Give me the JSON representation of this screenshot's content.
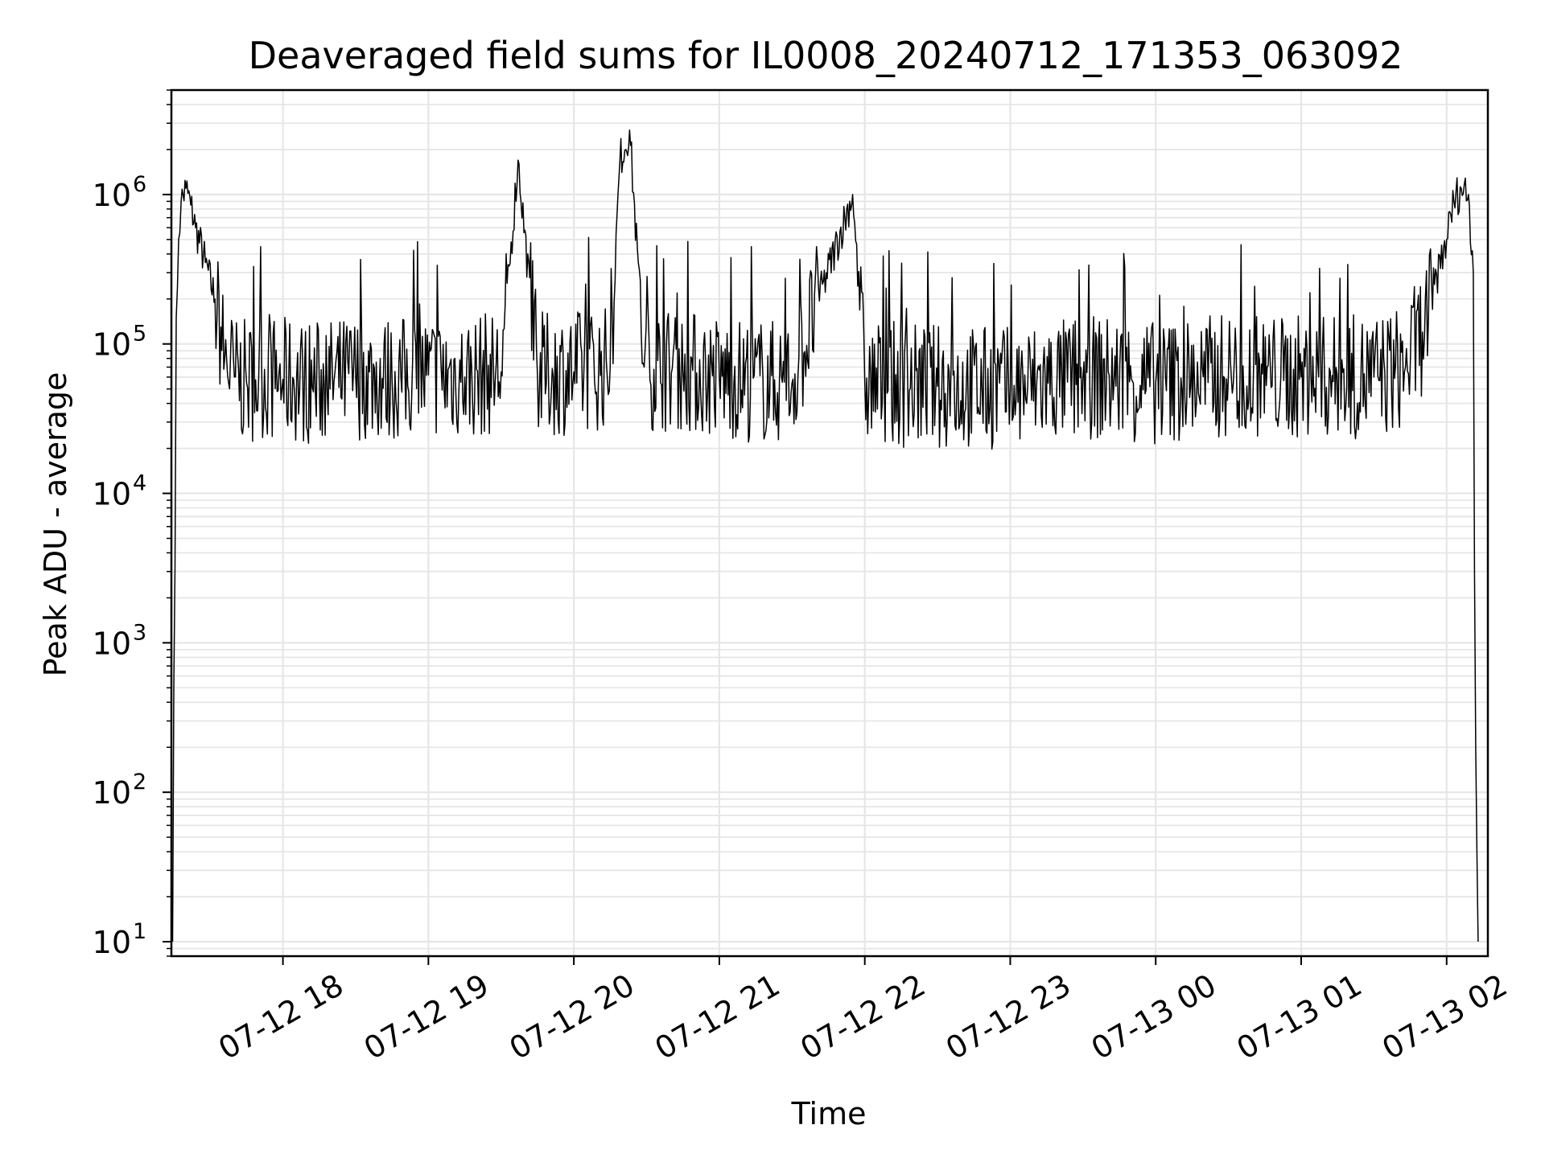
{
  "chart_data": {
    "type": "line",
    "title": "Deaveraged field sums for IL0008_20240712_171353_063092",
    "xlabel": "Time",
    "ylabel": "Peak ADU - average",
    "yscale": "log",
    "ylim": [
      8,
      5000000
    ],
    "xlim": [
      "2024-07-12T17:14:00",
      "2024-07-13T02:17:00"
    ],
    "grid": true,
    "legend": "none",
    "line_color": "#000000",
    "x_ticks": [
      {
        "t": "2024-07-12T18:00",
        "label": "07-12 18"
      },
      {
        "t": "2024-07-12T19:00",
        "label": "07-12 19"
      },
      {
        "t": "2024-07-12T20:00",
        "label": "07-12 20"
      },
      {
        "t": "2024-07-12T21:00",
        "label": "07-12 21"
      },
      {
        "t": "2024-07-12T22:00",
        "label": "07-12 22"
      },
      {
        "t": "2024-07-12T23:00",
        "label": "07-12 23"
      },
      {
        "t": "2024-07-13T00:00",
        "label": "07-13 00"
      },
      {
        "t": "2024-07-13T01:00",
        "label": "07-13 01"
      },
      {
        "t": "2024-07-13T02:00",
        "label": "07-13 02"
      }
    ],
    "y_ticks": [
      {
        "value": 10,
        "base": "10",
        "exp": "1"
      },
      {
        "value": 100,
        "base": "10",
        "exp": "2"
      },
      {
        "value": 1000,
        "base": "10",
        "exp": "3"
      },
      {
        "value": 10000,
        "base": "10",
        "exp": "4"
      },
      {
        "value": 100000,
        "base": "10",
        "exp": "5"
      },
      {
        "value": 1000000,
        "base": "10",
        "exp": "6"
      }
    ],
    "series": [
      {
        "x": [
          "2024-07-12T17:14:30",
          "2024-07-12T17:15:00",
          "2024-07-12T17:16:00",
          "2024-07-12T17:17:00",
          "2024-07-12T17:18:00",
          "2024-07-12T17:20:00",
          "2024-07-12T17:22:00",
          "2024-07-12T17:24:00",
          "2024-07-12T17:28:00",
          "2024-07-12T17:32:00",
          "2024-07-12T17:36:00",
          "2024-07-12T17:40:00",
          "2024-07-12T17:45:00",
          "2024-07-12T17:50:00",
          "2024-07-12T18:00:00",
          "2024-07-12T18:15:00",
          "2024-07-12T18:30:00",
          "2024-07-12T18:45:00",
          "2024-07-12T19:00:00",
          "2024-07-12T19:15:00",
          "2024-07-12T19:30:00",
          "2024-07-12T19:37:00",
          "2024-07-12T19:45:00",
          "2024-07-12T20:00:00",
          "2024-07-12T20:15:00",
          "2024-07-12T20:19:00",
          "2024-07-12T20:23:00",
          "2024-07-12T20:29:00",
          "2024-07-12T20:45:00",
          "2024-07-12T21:00:00",
          "2024-07-12T21:30:00",
          "2024-07-12T21:55:00",
          "2024-07-12T22:00:00",
          "2024-07-12T22:30:00",
          "2024-07-12T23:00:00",
          "2024-07-12T23:30:00",
          "2024-07-12T23:50:00",
          "2024-07-13T00:00:00",
          "2024-07-13T00:30:00",
          "2024-07-13T01:00:00",
          "2024-07-13T01:30:00",
          "2024-07-13T01:43:00",
          "2024-07-13T01:50:00",
          "2024-07-13T01:55:00",
          "2024-07-13T02:00:00",
          "2024-07-13T02:03:00",
          "2024-07-13T02:06:00",
          "2024-07-13T02:09:00",
          "2024-07-13T02:11:00",
          "2024-07-13T02:12:00",
          "2024-07-13T02:13:00"
        ],
        "y": [
          10,
          500,
          150000,
          500000,
          900000,
          1100000,
          850000,
          600000,
          350000,
          200000,
          80000,
          60000,
          55000,
          60000,
          58000,
          55000,
          60000,
          58000,
          62000,
          60000,
          65000,
          1700000,
          62000,
          65000,
          70000,
          1700000,
          2700000,
          70000,
          66000,
          60000,
          55000,
          1000000,
          55000,
          52000,
          50000,
          60000,
          58000,
          55000,
          62000,
          60000,
          60000,
          70000,
          120000,
          250000,
          500000,
          900000,
          1100000,
          1000000,
          300000,
          200,
          10
        ]
      }
    ]
  }
}
